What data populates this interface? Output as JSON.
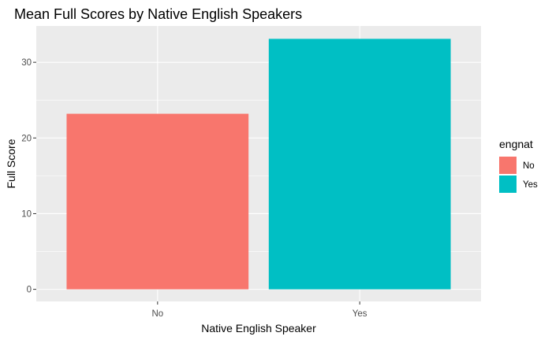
{
  "chart_data": {
    "type": "bar",
    "title": "Mean Full Scores by Native English Speakers",
    "xlabel": "Native English Speaker",
    "ylabel": "Full Score",
    "categories": [
      "No",
      "Yes"
    ],
    "values": [
      23.2,
      33.1
    ],
    "ylim": [
      -1.6,
      34.8
    ],
    "yticks": [
      0,
      10,
      20,
      30
    ],
    "yticks_labels": [
      "0",
      "10",
      "20",
      "30"
    ],
    "grid": true,
    "colors": {
      "No": "#F8766D",
      "Yes": "#00BFC4",
      "panel_background": "#EBEBEB",
      "grid": "#FFFFFF"
    },
    "legend": {
      "title": "engnat",
      "placement": "right",
      "entries": [
        "No",
        "Yes"
      ]
    }
  }
}
